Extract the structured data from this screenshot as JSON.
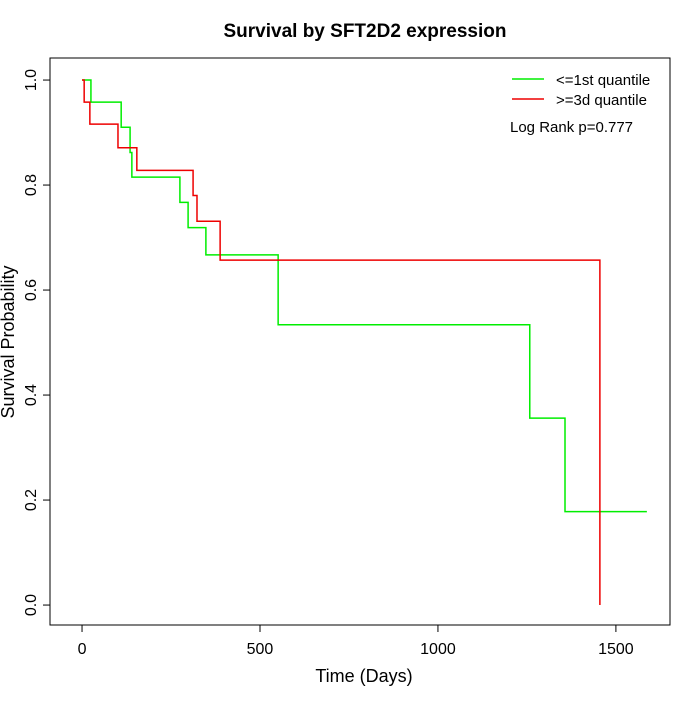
{
  "chart_data": {
    "type": "step",
    "title": "Survival by SFT2D2 expression",
    "xlabel": "Time (Days)",
    "ylabel": "Survival Probability",
    "annotation": "Log Rank p=0.777",
    "xlim": [
      -90,
      1652
    ],
    "ylim": [
      -0.038,
      1.042
    ],
    "xticks": [
      0,
      500,
      1000,
      1500
    ],
    "yticks": [
      {
        "value": 0,
        "label": "0.0"
      },
      0.2,
      0.4,
      0.6,
      0.8,
      {
        "value": 1,
        "label": "1.0"
      }
    ],
    "legend": "top-right",
    "series": [
      {
        "name": "<=1st quantile",
        "color": "#00ee00",
        "x": [
          0,
          25,
          110,
          135,
          140,
          275,
          298,
          348,
          551,
          1258,
          1357,
          1587
        ],
        "values": [
          1,
          0.958,
          0.91,
          0.862,
          0.815,
          0.767,
          0.719,
          0.667,
          0.534,
          0.356,
          0.178,
          0.178
        ]
      },
      {
        "name": ">=3d quantile",
        "color": "#ee0000",
        "x": [
          0,
          6,
          22,
          101,
          154,
          312,
          323,
          388,
          1455
        ],
        "values": [
          1,
          0.958,
          0.916,
          0.871,
          0.828,
          0.78,
          0.731,
          0.657,
          0
        ]
      }
    ]
  }
}
